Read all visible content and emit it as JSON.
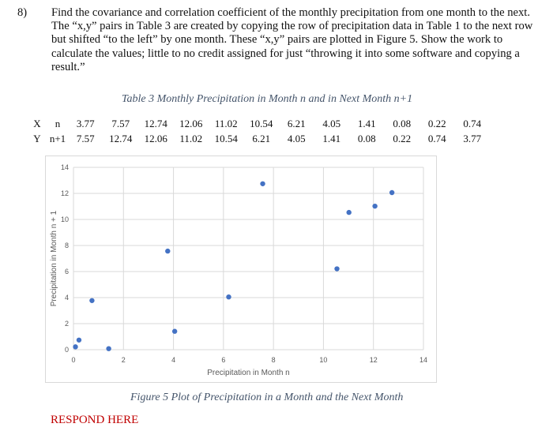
{
  "question": {
    "number": "8)",
    "text": "Find the covariance and correlation coefficient of the monthly precipitation from one month to the next. The “x,y” pairs in Table 3 are created by copying the row of precipitation data in Table 1 to the next row but shifted “to the left” by one month. These “x,y” pairs are plotted in Figure 5. Show the work to calculate the values; little to no credit assigned for just “throwing it into some software and copying a result.”"
  },
  "table": {
    "caption": "Table 3 Monthly Precipitation in Month n and in Next Month n+1",
    "rows": [
      {
        "label": "X",
        "sub": "n",
        "values": [
          "3.77",
          "7.57",
          "12.74",
          "12.06",
          "11.02",
          "10.54",
          "6.21",
          "4.05",
          "1.41",
          "0.08",
          "0.22",
          "0.74"
        ]
      },
      {
        "label": "Y",
        "sub": "n+1",
        "values": [
          "7.57",
          "12.74",
          "12.06",
          "11.02",
          "10.54",
          "6.21",
          "4.05",
          "1.41",
          "0.08",
          "0.22",
          "0.74",
          "3.77"
        ]
      }
    ]
  },
  "chart_data": {
    "type": "scatter",
    "xlabel": "Precipitation in Month n",
    "ylabel": "Precipitation in Month n + 1",
    "xlim": [
      0,
      14
    ],
    "ylim": [
      0,
      14
    ],
    "xticks": [
      0,
      2,
      4,
      6,
      8,
      10,
      12,
      14
    ],
    "yticks": [
      0,
      2,
      4,
      6,
      8,
      10,
      12,
      14
    ],
    "grid": true,
    "color": "#4472c4",
    "x": [
      3.77,
      7.57,
      12.74,
      12.06,
      11.02,
      10.54,
      6.21,
      4.05,
      1.41,
      0.08,
      0.22,
      0.74
    ],
    "y": [
      7.57,
      12.74,
      12.06,
      11.02,
      10.54,
      6.21,
      4.05,
      1.41,
      0.08,
      0.22,
      0.74,
      3.77
    ]
  },
  "figure_caption": "Figure 5 Plot of Precipitation in a Month and the Next Month",
  "respond": "RESPOND HERE"
}
